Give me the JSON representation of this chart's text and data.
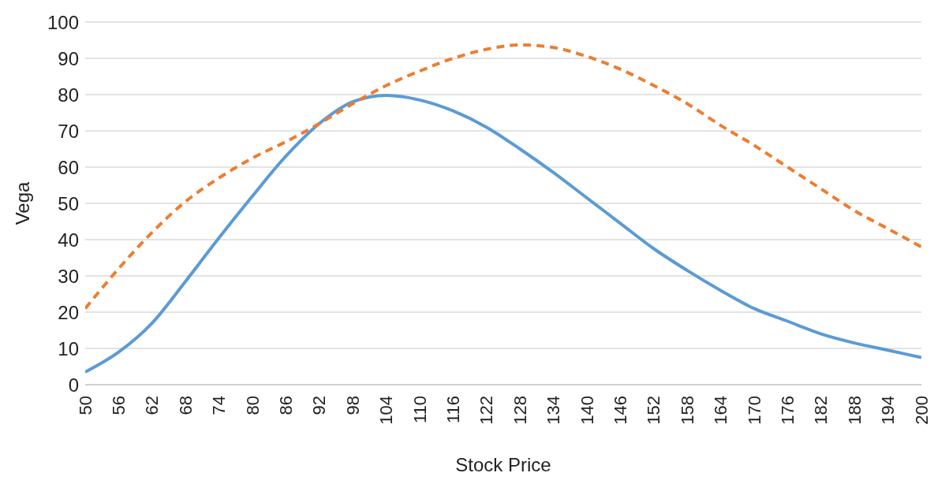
{
  "chart_data": {
    "type": "line",
    "xlabel": "Stock Price",
    "ylabel": "Vega",
    "x": [
      50,
      56,
      62,
      68,
      74,
      80,
      86,
      92,
      98,
      104,
      110,
      116,
      122,
      128,
      134,
      140,
      146,
      152,
      158,
      164,
      170,
      176,
      182,
      188,
      194,
      200
    ],
    "series": [
      {
        "color": "#5b9bd5",
        "line_style": "solid",
        "values": [
          3.5,
          9,
          17,
          28.5,
          40.5,
          52,
          63,
          72,
          78,
          79.8,
          78.5,
          75.5,
          71,
          65,
          58.5,
          51.5,
          44.5,
          37.5,
          31.5,
          26,
          21,
          17.5,
          14,
          11.5,
          9.5,
          7.5
        ]
      },
      {
        "color": "#ed7d31",
        "line_style": "dashed",
        "values": [
          21,
          32,
          42,
          50.5,
          57,
          62.5,
          67,
          72,
          77.5,
          82.5,
          86.5,
          90,
          92.5,
          93.7,
          93,
          90.5,
          87,
          82.5,
          77.5,
          71.5,
          66,
          60,
          54,
          48,
          43,
          38
        ]
      }
    ],
    "xlim": [
      50,
      200
    ],
    "xticks": [
      50,
      56,
      62,
      68,
      74,
      80,
      86,
      92,
      98,
      104,
      110,
      116,
      122,
      128,
      134,
      140,
      146,
      152,
      158,
      164,
      170,
      176,
      182,
      188,
      194,
      200
    ],
    "ylim": [
      0,
      100
    ],
    "yticks": [
      0,
      10,
      20,
      30,
      40,
      50,
      60,
      70,
      80,
      90,
      100
    ],
    "grid": "y",
    "marker": "none",
    "legend": false
  }
}
